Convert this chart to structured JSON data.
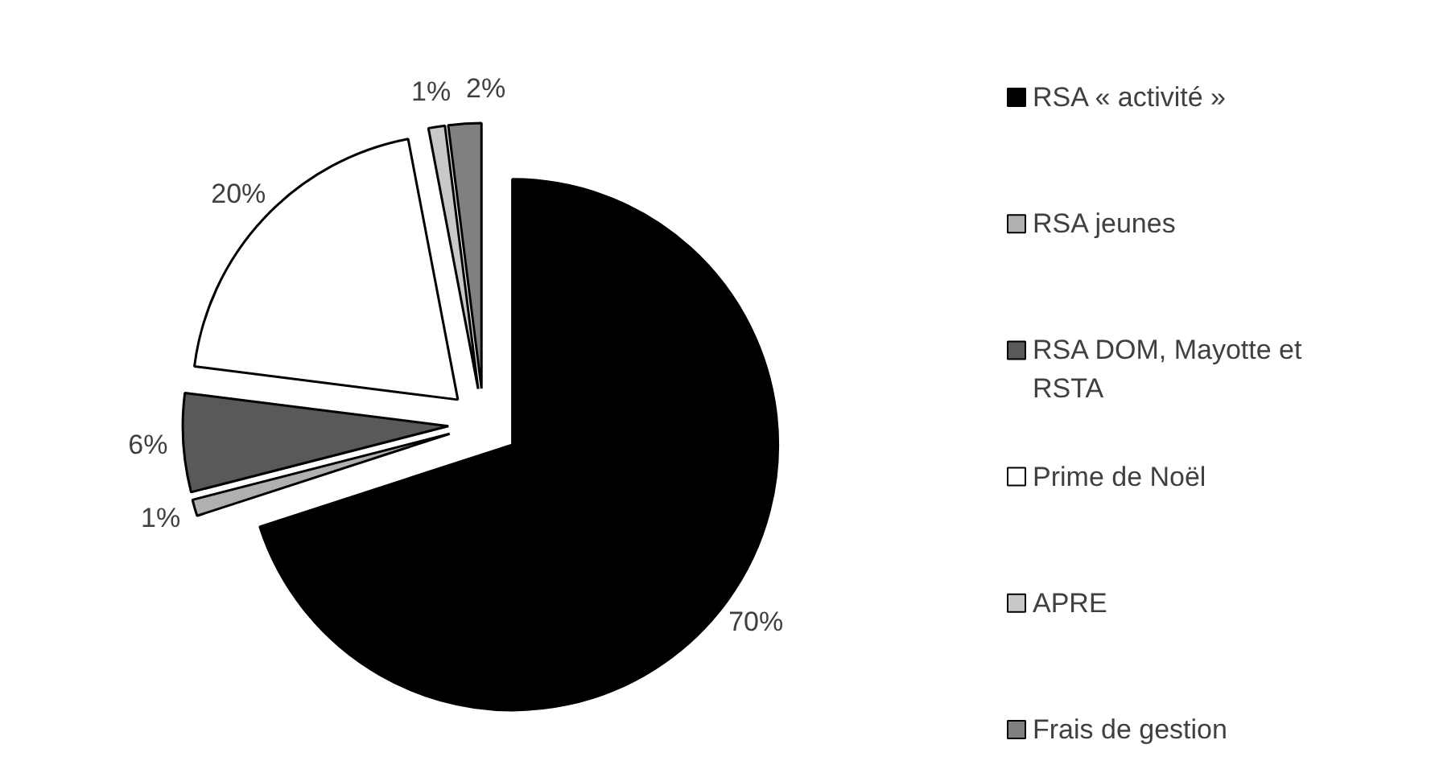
{
  "chart_data": {
    "type": "pie",
    "categories": [
      "RSA « activité »",
      "RSA jeunes",
      "RSA DOM, Mayotte et RSTA",
      "Prime de Noël",
      "APRE",
      "Frais de gestion"
    ],
    "values": [
      70,
      1,
      6,
      20,
      1,
      2
    ],
    "value_labels": [
      "70%",
      "1%",
      "6%",
      "20%",
      "1%",
      "2%"
    ],
    "colors": [
      "#000000",
      "#b0b0b0",
      "#595959",
      "#ffffff",
      "#c8c8c8",
      "#808080"
    ],
    "legend": "right"
  }
}
